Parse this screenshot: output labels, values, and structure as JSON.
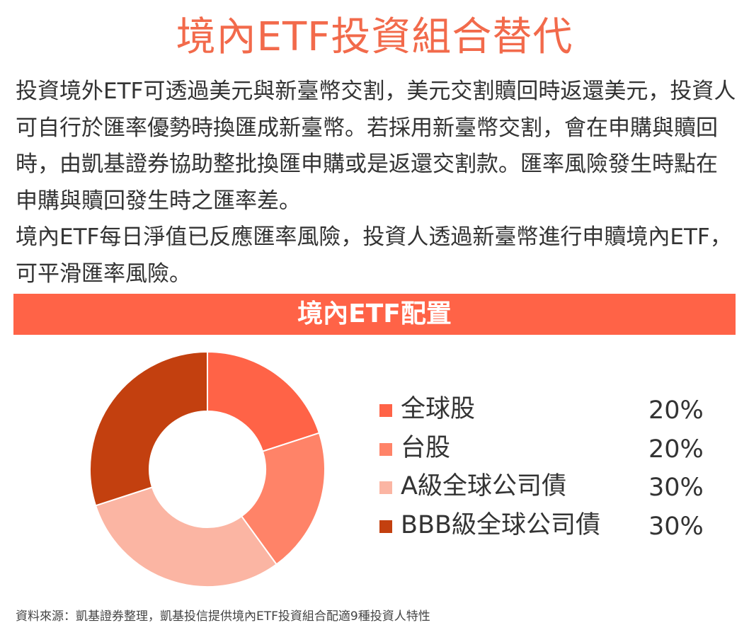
{
  "title": "境內ETF投資組合替代",
  "paragraphs": [
    "投資境外ETF可透過美元與新臺幣交割，美元交割贖回時返還美元，投資人可自行於匯率優勢時換匯成新臺幣。若採用新臺幣交割，會在申購與贖回時，由凱基證券協助整批換匯申購或是返還交割款。匯率風險發生時點在申購與贖回發生時之匯率差。",
    "境內ETF每日淨值已反應匯率風險，投資人透過新臺幣進行申贖境內ETF，可平滑匯率風險。"
  ],
  "banner": "境內ETF配置",
  "colors": {
    "title": "#f26a4b",
    "banner": "#ff6347"
  },
  "chart_data": {
    "type": "pie",
    "variant": "donut",
    "categories": [
      "全球股",
      "台股",
      "A級全球公司債",
      "BBB級全球公司債"
    ],
    "values": [
      20,
      20,
      30,
      30
    ],
    "value_labels": [
      "20%",
      "20%",
      "30%",
      "30%"
    ],
    "colors": [
      "#ff6347",
      "#ff8368",
      "#fbb5a3",
      "#c3400f"
    ],
    "legend_position": "right"
  },
  "source": "資料來源：凱基證券整理，凱基投信提供境內ETF投資組合配適9種投資人特性"
}
